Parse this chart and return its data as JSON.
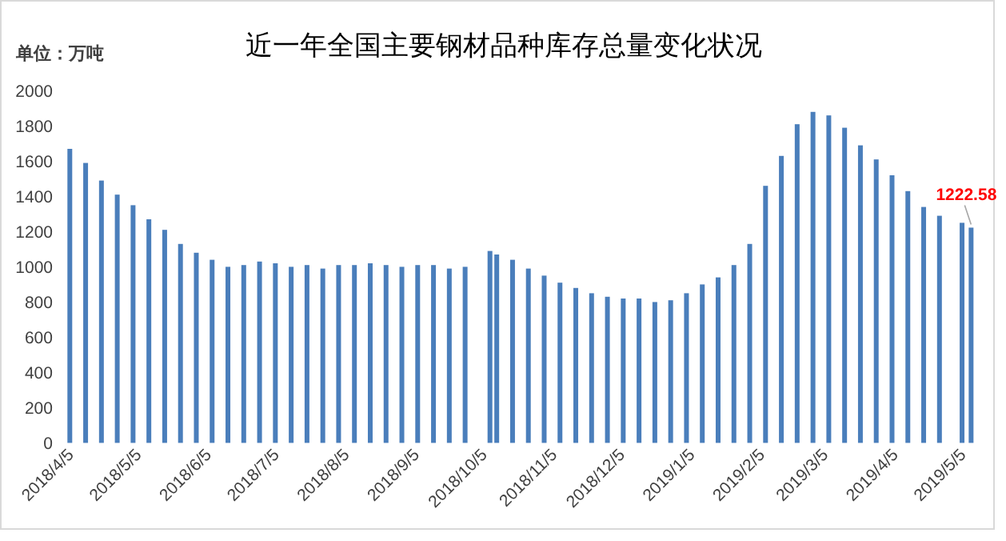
{
  "chart_data": {
    "type": "bar",
    "title": "近一年全国主要钢材品种库存总量变化状况",
    "ylabel": "单位：万吨",
    "x": [
      "2018-04-05",
      "2018-04-12",
      "2018-04-19",
      "2018-04-26",
      "2018-05-03",
      "2018-05-10",
      "2018-05-17",
      "2018-05-24",
      "2018-05-31",
      "2018-06-07",
      "2018-06-14",
      "2018-06-21",
      "2018-06-28",
      "2018-07-05",
      "2018-07-12",
      "2018-07-19",
      "2018-07-26",
      "2018-08-02",
      "2018-08-09",
      "2018-08-16",
      "2018-08-23",
      "2018-08-30",
      "2018-09-06",
      "2018-09-13",
      "2018-09-20",
      "2018-09-27",
      "2018-10-08",
      "2018-10-11",
      "2018-10-18",
      "2018-10-25",
      "2018-11-01",
      "2018-11-08",
      "2018-11-15",
      "2018-11-22",
      "2018-11-29",
      "2018-12-06",
      "2018-12-13",
      "2018-12-20",
      "2018-12-27",
      "2019-01-03",
      "2019-01-10",
      "2019-01-17",
      "2019-01-24",
      "2019-01-31",
      "2019-02-07",
      "2019-02-14",
      "2019-02-21",
      "2019-02-28",
      "2019-03-07",
      "2019-03-14",
      "2019-03-21",
      "2019-03-28",
      "2019-04-04",
      "2019-04-11",
      "2019-04-18",
      "2019-04-25",
      "2019-05-05",
      "2019-05-09"
    ],
    "series": [
      {
        "color": "#4a7ebb",
        "values": [
          1670,
          1590,
          1490,
          1410,
          1350,
          1270,
          1210,
          1130,
          1080,
          1040,
          1000,
          1010,
          1030,
          1020,
          1000,
          1010,
          990,
          1010,
          1010,
          1020,
          1010,
          1000,
          1010,
          1010,
          990,
          1000,
          1090,
          1070,
          1040,
          990,
          950,
          910,
          880,
          850,
          830,
          820,
          820,
          800,
          810,
          850,
          900,
          940,
          1010,
          1130,
          1460,
          1630,
          1810,
          1880,
          1860,
          1790,
          1690,
          1610,
          1520,
          1430,
          1340,
          1290,
          1250,
          1222.58
        ],
        "value_labels": [
          null,
          null,
          null,
          null,
          null,
          null,
          null,
          null,
          null,
          null,
          null,
          null,
          null,
          null,
          null,
          null,
          null,
          null,
          null,
          null,
          null,
          null,
          null,
          null,
          null,
          null,
          null,
          null,
          null,
          null,
          null,
          null,
          null,
          null,
          null,
          null,
          null,
          null,
          null,
          null,
          null,
          null,
          null,
          null,
          null,
          null,
          null,
          null,
          null,
          null,
          null,
          null,
          null,
          null,
          null,
          null,
          null,
          "1222.58"
        ]
      }
    ],
    "xlim": [
      "2018-04-01",
      "2019-05-11"
    ],
    "xticks": [
      {
        "value": "2018-04-05",
        "label": "2018/4/5"
      },
      {
        "value": "2018-05-05",
        "label": "2018/5/5"
      },
      {
        "value": "2018-06-05",
        "label": "2018/6/5"
      },
      {
        "value": "2018-07-05",
        "label": "2018/7/5"
      },
      {
        "value": "2018-08-05",
        "label": "2018/8/5"
      },
      {
        "value": "2018-09-05",
        "label": "2018/9/5"
      },
      {
        "value": "2018-10-05",
        "label": "2018/10/5"
      },
      {
        "value": "2018-11-05",
        "label": "2018/11/5"
      },
      {
        "value": "2018-12-05",
        "label": "2018/12/5"
      },
      {
        "value": "2019-01-05",
        "label": "2019/1/5"
      },
      {
        "value": "2019-02-05",
        "label": "2019/2/5"
      },
      {
        "value": "2019-03-05",
        "label": "2019/3/5"
      },
      {
        "value": "2019-04-05",
        "label": "2019/4/5"
      },
      {
        "value": "2019-05-05",
        "label": "2019/5/5"
      }
    ],
    "ylim": [
      0,
      2000
    ],
    "yticks": [
      0,
      200,
      400,
      600,
      800,
      1000,
      1200,
      1400,
      1600,
      1800,
      2000
    ],
    "grid": false
  }
}
